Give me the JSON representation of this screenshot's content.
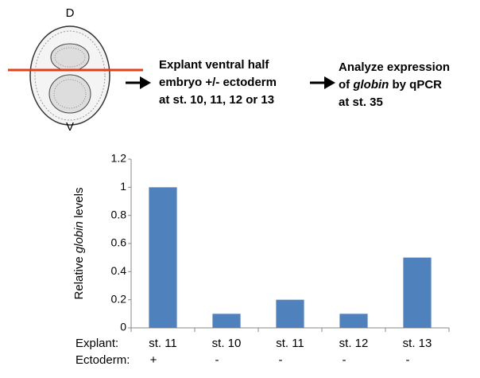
{
  "diagram": {
    "dorsal": "D",
    "ventral": "V",
    "step1": [
      "Explant ventral half",
      "embryo +/- ectoderm",
      "at st. 10, 11, 12 or 13"
    ],
    "step2": {
      "line1": "Analyze expression",
      "line2": [
        "of ",
        "globin",
        " by qPCR"
      ],
      "line3": "at st. 35"
    }
  },
  "chart_data": {
    "type": "bar",
    "y_label": [
      "Relative ",
      "globin",
      " levels"
    ],
    "x_label": "Explant:",
    "categories": [
      "st. 11",
      "st. 10",
      "st. 11",
      "st. 12",
      "st. 13"
    ],
    "ectoderm": {
      "label": "Ectoderm:",
      "values": [
        "+",
        "-",
        "-",
        "-",
        "-"
      ]
    },
    "values": [
      1.0,
      0.1,
      0.2,
      0.1,
      0.5
    ],
    "color": "#4f81bd",
    "ylim": [
      0,
      1.2
    ],
    "yticks": [
      0,
      0.2,
      0.4,
      0.6,
      0.8,
      1,
      1.2
    ]
  }
}
